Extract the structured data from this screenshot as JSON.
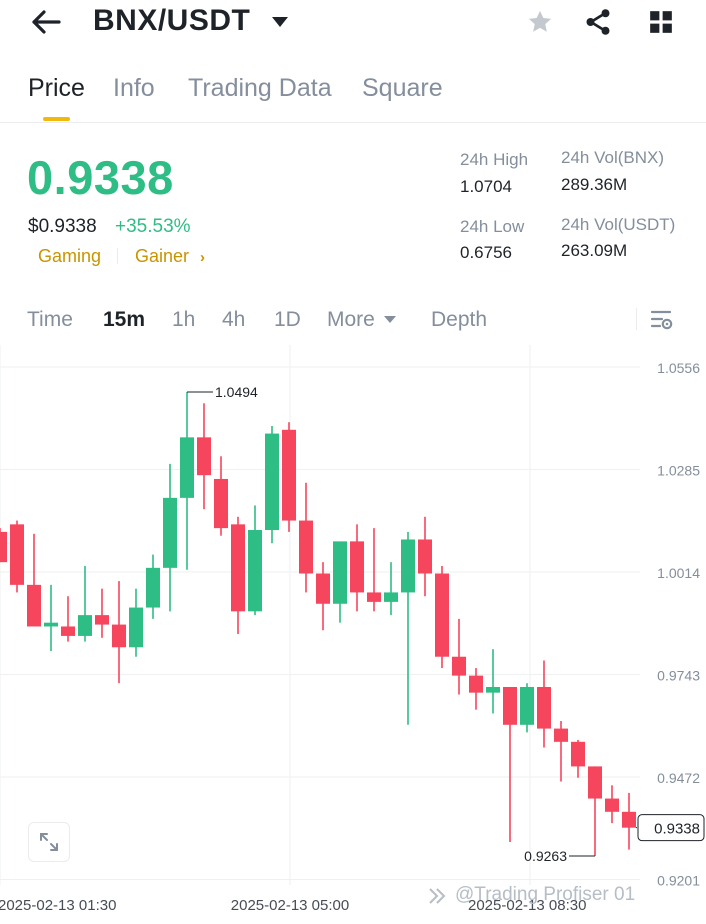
{
  "header": {
    "pair": "BNX/USDT",
    "icons": [
      "back-arrow-icon",
      "star-icon",
      "share-icon",
      "grid-icon"
    ]
  },
  "tabs": [
    {
      "label": "Price",
      "active": true
    },
    {
      "label": "Info",
      "active": false
    },
    {
      "label": "Trading Data",
      "active": false
    },
    {
      "label": "Square",
      "active": false
    }
  ],
  "ticker": {
    "last_price": "0.9338",
    "usd_price": "$0.9338",
    "change": "+35.53%",
    "tags": [
      "Gaming",
      "Gainer"
    ],
    "stats": {
      "high_label": "24h High",
      "high_value": "1.0704",
      "low_label": "24h Low",
      "low_value": "0.6756",
      "vol_base_label": "24h Vol(BNX)",
      "vol_base_value": "289.36M",
      "vol_quote_label": "24h Vol(USDT)",
      "vol_quote_value": "263.09M"
    }
  },
  "intervals": {
    "items": [
      "Time",
      "15m",
      "1h",
      "4h",
      "1D",
      "More",
      "Depth"
    ],
    "active": "15m"
  },
  "colors": {
    "up": "#2ebd85",
    "down": "#f6465d",
    "accent": "#f0b90b"
  },
  "chart_data": {
    "type": "candlestick",
    "interval": "15m",
    "y_ticks": [
      "1.0556",
      "1.0285",
      "1.0014",
      "0.9743",
      "0.9472",
      "0.9201"
    ],
    "x_ticks": [
      "2025-02-13 01:30",
      "2025-02-13 05:00",
      "2025-02-13 08:30"
    ],
    "current_price": "0.9338",
    "high_marker": "1.0494",
    "low_marker": "0.9263",
    "candles": [
      {
        "o": 1.012,
        "h": 1.013,
        "l": 1.004,
        "c": 1.004
      },
      {
        "o": 1.014,
        "h": 1.015,
        "l": 0.996,
        "c": 0.998
      },
      {
        "o": 0.998,
        "h": 1.0115,
        "l": 0.988,
        "c": 0.987
      },
      {
        "o": 0.987,
        "h": 0.998,
        "l": 0.9805,
        "c": 0.988
      },
      {
        "o": 0.987,
        "h": 0.995,
        "l": 0.983,
        "c": 0.9845
      },
      {
        "o": 0.9845,
        "h": 1.003,
        "l": 0.983,
        "c": 0.99
      },
      {
        "o": 0.99,
        "h": 0.997,
        "l": 0.984,
        "c": 0.9875
      },
      {
        "o": 0.9875,
        "h": 0.999,
        "l": 0.972,
        "c": 0.9815
      },
      {
        "o": 0.9815,
        "h": 0.997,
        "l": 0.979,
        "c": 0.992
      },
      {
        "o": 0.992,
        "h": 1.006,
        "l": 0.989,
        "c": 1.0025
      },
      {
        "o": 1.0025,
        "h": 1.03,
        "l": 0.991,
        "c": 1.021
      },
      {
        "o": 1.021,
        "h": 1.049,
        "l": 1.002,
        "c": 1.037
      },
      {
        "o": 1.037,
        "h": 1.046,
        "l": 1.018,
        "c": 1.027
      },
      {
        "o": 1.026,
        "h": 1.032,
        "l": 1.011,
        "c": 1.013
      },
      {
        "o": 1.014,
        "h": 1.016,
        "l": 0.985,
        "c": 0.991
      },
      {
        "o": 0.991,
        "h": 1.019,
        "l": 0.99,
        "c": 1.0125
      },
      {
        "o": 1.0125,
        "h": 1.04,
        "l": 1.009,
        "c": 1.038
      },
      {
        "o": 1.039,
        "h": 1.041,
        "l": 1.012,
        "c": 1.015
      },
      {
        "o": 1.015,
        "h": 1.025,
        "l": 0.996,
        "c": 1.001
      },
      {
        "o": 1.001,
        "h": 1.004,
        "l": 0.986,
        "c": 0.993
      },
      {
        "o": 0.993,
        "h": 1.009,
        "l": 0.988,
        "c": 1.0095
      },
      {
        "o": 1.0095,
        "h": 1.014,
        "l": 0.991,
        "c": 0.996
      },
      {
        "o": 0.996,
        "h": 1.013,
        "l": 0.991,
        "c": 0.9935
      },
      {
        "o": 0.9935,
        "h": 1.004,
        "l": 0.99,
        "c": 0.996
      },
      {
        "o": 0.996,
        "h": 1.012,
        "l": 0.961,
        "c": 1.01
      },
      {
        "o": 1.01,
        "h": 1.016,
        "l": 0.995,
        "c": 1.001
      },
      {
        "o": 1.001,
        "h": 1.003,
        "l": 0.976,
        "c": 0.979
      },
      {
        "o": 0.979,
        "h": 0.989,
        "l": 0.969,
        "c": 0.974
      },
      {
        "o": 0.974,
        "h": 0.976,
        "l": 0.965,
        "c": 0.9695
      },
      {
        "o": 0.9695,
        "h": 0.981,
        "l": 0.964,
        "c": 0.971
      },
      {
        "o": 0.971,
        "h": 0.971,
        "l": 0.93,
        "c": 0.961
      },
      {
        "o": 0.961,
        "h": 0.972,
        "l": 0.959,
        "c": 0.971
      },
      {
        "o": 0.971,
        "h": 0.978,
        "l": 0.955,
        "c": 0.96
      },
      {
        "o": 0.96,
        "h": 0.962,
        "l": 0.946,
        "c": 0.9565
      },
      {
        "o": 0.9565,
        "h": 0.957,
        "l": 0.947,
        "c": 0.95
      },
      {
        "o": 0.95,
        "h": 0.95,
        "l": 0.9263,
        "c": 0.9415
      },
      {
        "o": 0.9415,
        "h": 0.945,
        "l": 0.935,
        "c": 0.938
      },
      {
        "o": 0.938,
        "h": 0.943,
        "l": 0.928,
        "c": 0.9338
      }
    ]
  },
  "footer": {
    "watermark": "@Trading Profiser 01"
  }
}
